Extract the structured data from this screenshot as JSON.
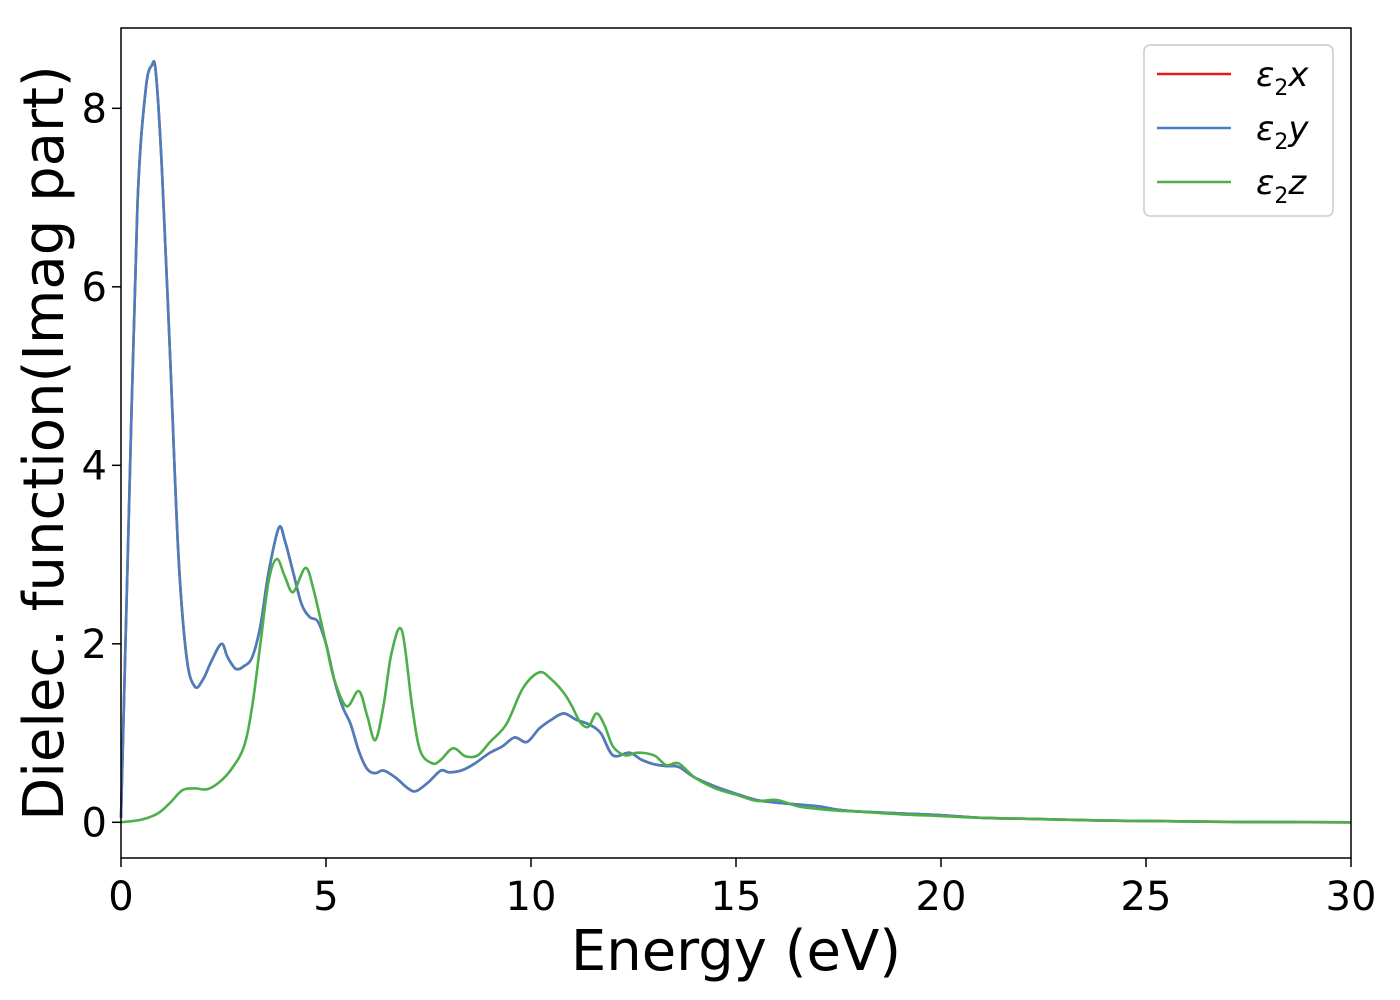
{
  "chart_data": {
    "type": "line",
    "title": "",
    "xlabel": "Energy (eV)",
    "ylabel": "Dielec. function(Imag part)",
    "xlim": [
      0,
      30
    ],
    "ylim": [
      -0.4,
      8.9
    ],
    "xticks": [
      0,
      5,
      10,
      15,
      20,
      25,
      30
    ],
    "yticks": [
      0,
      2,
      4,
      6,
      8
    ],
    "grid": false,
    "legend_position": "top-right",
    "series": [
      {
        "name": "ε2x",
        "legend": {
          "base": "ε",
          "sub": "2",
          "suffix": "x"
        },
        "color": "#e41a1c",
        "x": [
          0,
          0.2,
          0.4,
          0.6,
          0.75,
          0.85,
          1.0,
          1.2,
          1.4,
          1.6,
          1.8,
          2.0,
          2.2,
          2.45,
          2.6,
          2.8,
          3.0,
          3.2,
          3.4,
          3.6,
          3.85,
          4.0,
          4.2,
          4.4,
          4.6,
          4.8,
          5.0,
          5.2,
          5.4,
          5.6,
          5.8,
          6.0,
          6.2,
          6.4,
          6.7,
          7.0,
          7.2,
          7.5,
          7.8,
          8.0,
          8.3,
          8.6,
          9.0,
          9.3,
          9.6,
          9.9,
          10.2,
          10.5,
          10.8,
          11.1,
          11.4,
          11.7,
          12.0,
          12.4,
          12.7,
          13.0,
          13.3,
          13.6,
          14.0,
          14.5,
          15.0,
          15.5,
          16.0,
          16.5,
          17.0,
          17.5,
          18.0,
          19.0,
          20.0,
          21.0,
          22.0,
          23.0,
          24.0,
          25.0,
          26.0,
          27.0,
          28.0,
          30.0
        ],
        "values": [
          0.05,
          3.6,
          6.9,
          8.2,
          8.48,
          8.4,
          7.3,
          5.2,
          3.0,
          1.85,
          1.52,
          1.6,
          1.8,
          2.0,
          1.85,
          1.72,
          1.75,
          1.85,
          2.2,
          2.8,
          3.3,
          3.15,
          2.8,
          2.45,
          2.3,
          2.25,
          2.0,
          1.6,
          1.3,
          1.1,
          0.8,
          0.6,
          0.55,
          0.58,
          0.5,
          0.38,
          0.35,
          0.45,
          0.58,
          0.56,
          0.58,
          0.65,
          0.78,
          0.85,
          0.95,
          0.9,
          1.05,
          1.15,
          1.22,
          1.15,
          1.1,
          1.0,
          0.75,
          0.78,
          0.7,
          0.65,
          0.63,
          0.62,
          0.5,
          0.4,
          0.32,
          0.25,
          0.22,
          0.2,
          0.18,
          0.14,
          0.12,
          0.1,
          0.08,
          0.05,
          0.04,
          0.03,
          0.02,
          0.015,
          0.01,
          0.005,
          0.003,
          0.0
        ]
      },
      {
        "name": "ε2y",
        "legend": {
          "base": "ε",
          "sub": "2",
          "suffix": "y"
        },
        "color": "#4a7fbf",
        "x": [
          0,
          0.2,
          0.4,
          0.6,
          0.75,
          0.85,
          1.0,
          1.2,
          1.4,
          1.6,
          1.8,
          2.0,
          2.2,
          2.45,
          2.6,
          2.8,
          3.0,
          3.2,
          3.4,
          3.6,
          3.85,
          4.0,
          4.2,
          4.4,
          4.6,
          4.8,
          5.0,
          5.2,
          5.4,
          5.6,
          5.8,
          6.0,
          6.2,
          6.4,
          6.7,
          7.0,
          7.2,
          7.5,
          7.8,
          8.0,
          8.3,
          8.6,
          9.0,
          9.3,
          9.6,
          9.9,
          10.2,
          10.5,
          10.8,
          11.1,
          11.4,
          11.7,
          12.0,
          12.4,
          12.7,
          13.0,
          13.3,
          13.6,
          14.0,
          14.5,
          15.0,
          15.5,
          16.0,
          16.5,
          17.0,
          17.5,
          18.0,
          19.0,
          20.0,
          21.0,
          22.0,
          23.0,
          24.0,
          25.0,
          26.0,
          27.0,
          28.0,
          30.0
        ],
        "values": [
          0.05,
          3.6,
          6.9,
          8.2,
          8.48,
          8.4,
          7.3,
          5.2,
          3.0,
          1.85,
          1.52,
          1.6,
          1.8,
          2.0,
          1.85,
          1.72,
          1.75,
          1.85,
          2.2,
          2.8,
          3.3,
          3.15,
          2.8,
          2.45,
          2.3,
          2.25,
          2.0,
          1.6,
          1.3,
          1.1,
          0.8,
          0.6,
          0.55,
          0.58,
          0.5,
          0.38,
          0.35,
          0.45,
          0.58,
          0.56,
          0.58,
          0.65,
          0.78,
          0.85,
          0.95,
          0.9,
          1.05,
          1.15,
          1.22,
          1.15,
          1.1,
          1.0,
          0.75,
          0.78,
          0.7,
          0.65,
          0.63,
          0.62,
          0.5,
          0.4,
          0.32,
          0.25,
          0.22,
          0.2,
          0.18,
          0.14,
          0.12,
          0.1,
          0.08,
          0.05,
          0.04,
          0.03,
          0.02,
          0.015,
          0.01,
          0.005,
          0.003,
          0.0
        ]
      },
      {
        "name": "ε2z",
        "legend": {
          "base": "ε",
          "sub": "2",
          "suffix": "z"
        },
        "color": "#4daf4a",
        "x": [
          0,
          0.5,
          0.9,
          1.2,
          1.5,
          1.8,
          2.1,
          2.4,
          2.7,
          3.0,
          3.2,
          3.4,
          3.6,
          3.8,
          4.0,
          4.2,
          4.5,
          4.7,
          5.0,
          5.2,
          5.5,
          5.8,
          6.0,
          6.2,
          6.4,
          6.6,
          6.85,
          7.1,
          7.3,
          7.6,
          7.8,
          8.1,
          8.4,
          8.7,
          9.0,
          9.4,
          9.8,
          10.2,
          10.5,
          10.8,
          11.0,
          11.2,
          11.4,
          11.6,
          11.8,
          12.0,
          12.3,
          12.6,
          13.0,
          13.3,
          13.6,
          14.0,
          14.5,
          15.0,
          15.5,
          16.0,
          16.5,
          17.0,
          17.5,
          18.0,
          19.0,
          20.0,
          21.0,
          22.0,
          23.0,
          24.0,
          25.0,
          26.0,
          27.0,
          28.0,
          30.0
        ],
        "values": [
          0.0,
          0.03,
          0.1,
          0.22,
          0.36,
          0.38,
          0.37,
          0.45,
          0.6,
          0.85,
          1.3,
          2.0,
          2.7,
          2.95,
          2.75,
          2.58,
          2.85,
          2.6,
          2.0,
          1.6,
          1.3,
          1.47,
          1.2,
          0.92,
          1.3,
          1.9,
          2.15,
          1.3,
          0.8,
          0.66,
          0.7,
          0.83,
          0.74,
          0.75,
          0.9,
          1.1,
          1.5,
          1.68,
          1.6,
          1.45,
          1.3,
          1.12,
          1.07,
          1.22,
          1.08,
          0.85,
          0.75,
          0.78,
          0.75,
          0.64,
          0.66,
          0.5,
          0.38,
          0.31,
          0.24,
          0.25,
          0.18,
          0.15,
          0.13,
          0.12,
          0.09,
          0.07,
          0.05,
          0.04,
          0.03,
          0.02,
          0.015,
          0.01,
          0.005,
          0.003,
          0.0
        ]
      }
    ]
  }
}
